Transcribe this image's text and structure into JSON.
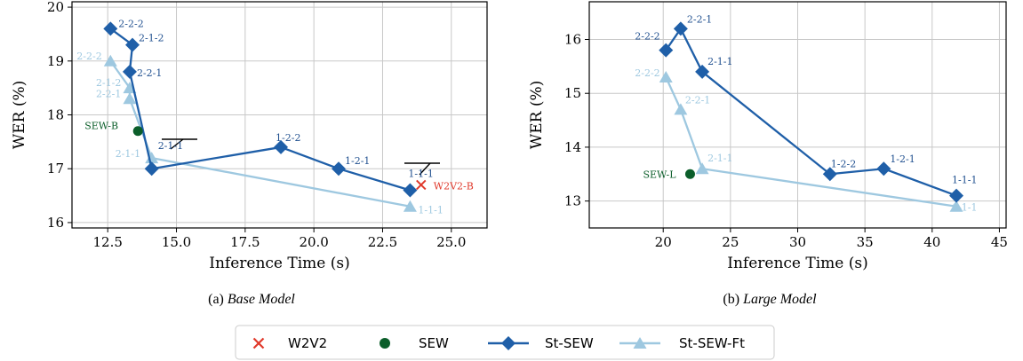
{
  "colors": {
    "st_sew": "#1f5fa8",
    "st_sew_label": "#1f4f8f",
    "st_sew_ft": "#9ec8e0",
    "w2v2": "#e0392b",
    "sew": "#0b5e2a",
    "grid": "#c8c8c8"
  },
  "legend": {
    "entries": [
      {
        "label": "W2V2",
        "marker": "x"
      },
      {
        "label": "SEW",
        "marker": "circle"
      },
      {
        "label": "St-SEW",
        "marker": "diamond"
      },
      {
        "label": "St-SEW-Ft",
        "marker": "triangle"
      }
    ]
  },
  "chart_data": [
    {
      "type": "scatter",
      "caption_prefix": "(a) ",
      "caption_italic": "Base Model",
      "xlabel": "Inference Time (s)",
      "ylabel": "WER (%)",
      "xlim": [
        11.2,
        26.3
      ],
      "ylim": [
        15.9,
        20.1
      ],
      "xticks": [
        12.5,
        15.0,
        17.5,
        20.0,
        22.5,
        25.0
      ],
      "xtick_labels": [
        "12.5",
        "15.0",
        "17.5",
        "20.0",
        "22.5",
        "25.0"
      ],
      "yticks": [
        16,
        17,
        18,
        19,
        20
      ],
      "ytick_labels": [
        "16",
        "17",
        "18",
        "19",
        "20"
      ],
      "grid": true,
      "series": [
        {
          "name": "St-SEW",
          "marker": "diamond",
          "points": [
            {
              "x": 12.6,
              "y": 19.6,
              "label": "2-2-2"
            },
            {
              "x": 13.4,
              "y": 19.3,
              "label": "2-1-2"
            },
            {
              "x": 13.3,
              "y": 18.8,
              "label": "2-2-1"
            },
            {
              "x": 14.1,
              "y": 17.0,
              "label": "2-1-1"
            },
            {
              "x": 18.8,
              "y": 17.4,
              "label": "1-2-2"
            },
            {
              "x": 20.9,
              "y": 17.0,
              "label": "1-2-1"
            },
            {
              "x": 23.5,
              "y": 16.6,
              "label": "1-1-1"
            }
          ]
        },
        {
          "name": "St-SEW-Ft",
          "marker": "triangle",
          "points": [
            {
              "x": 12.6,
              "y": 19.0,
              "label": "2-2-2"
            },
            {
              "x": 13.3,
              "y": 18.5,
              "label": "2-1-2"
            },
            {
              "x": 13.3,
              "y": 18.3,
              "label": "2-2-1"
            },
            {
              "x": 14.1,
              "y": 17.2,
              "label": "2-1-1"
            },
            {
              "x": 23.5,
              "y": 16.3,
              "label": "1-1-1"
            }
          ]
        },
        {
          "name": "SEW",
          "marker": "circle",
          "points": [
            {
              "x": 13.6,
              "y": 17.7,
              "label": "SEW-B"
            }
          ]
        },
        {
          "name": "W2V2",
          "marker": "x",
          "points": [
            {
              "x": 23.9,
              "y": 16.7,
              "label": "W2V2-B"
            }
          ]
        }
      ]
    },
    {
      "type": "scatter",
      "caption_prefix": "(b) ",
      "caption_italic": "Large Model",
      "xlabel": "Inference Time (s)",
      "ylabel": "WER (%)",
      "xlim": [
        14.5,
        45.5
      ],
      "ylim": [
        12.5,
        16.7
      ],
      "xticks": [
        20,
        25,
        30,
        35,
        40,
        45
      ],
      "xtick_labels": [
        "20",
        "25",
        "30",
        "35",
        "40",
        "45"
      ],
      "yticks": [
        13,
        14,
        15,
        16
      ],
      "ytick_labels": [
        "13",
        "14",
        "15",
        "16"
      ],
      "grid": true,
      "series": [
        {
          "name": "St-SEW",
          "marker": "diamond",
          "points": [
            {
              "x": 20.2,
              "y": 15.8,
              "label": "2-2-2"
            },
            {
              "x": 21.3,
              "y": 16.2,
              "label": "2-2-1"
            },
            {
              "x": 22.9,
              "y": 15.4,
              "label": "2-1-1"
            },
            {
              "x": 32.4,
              "y": 13.5,
              "label": "1-2-2"
            },
            {
              "x": 36.4,
              "y": 13.6,
              "label": "1-2-1"
            },
            {
              "x": 41.8,
              "y": 13.1,
              "label": "1-1-1"
            }
          ]
        },
        {
          "name": "St-SEW-Ft",
          "marker": "triangle",
          "points": [
            {
              "x": 20.2,
              "y": 15.3,
              "label": "2-2-2"
            },
            {
              "x": 21.3,
              "y": 14.7,
              "label": "2-2-1"
            },
            {
              "x": 22.9,
              "y": 13.6,
              "label": "2-1-1"
            },
            {
              "x": 41.8,
              "y": 12.9,
              "label": "1-1-1"
            }
          ]
        },
        {
          "name": "SEW",
          "marker": "circle",
          "points": [
            {
              "x": 22.0,
              "y": 13.5,
              "label": "SEW-L"
            }
          ]
        }
      ]
    }
  ]
}
